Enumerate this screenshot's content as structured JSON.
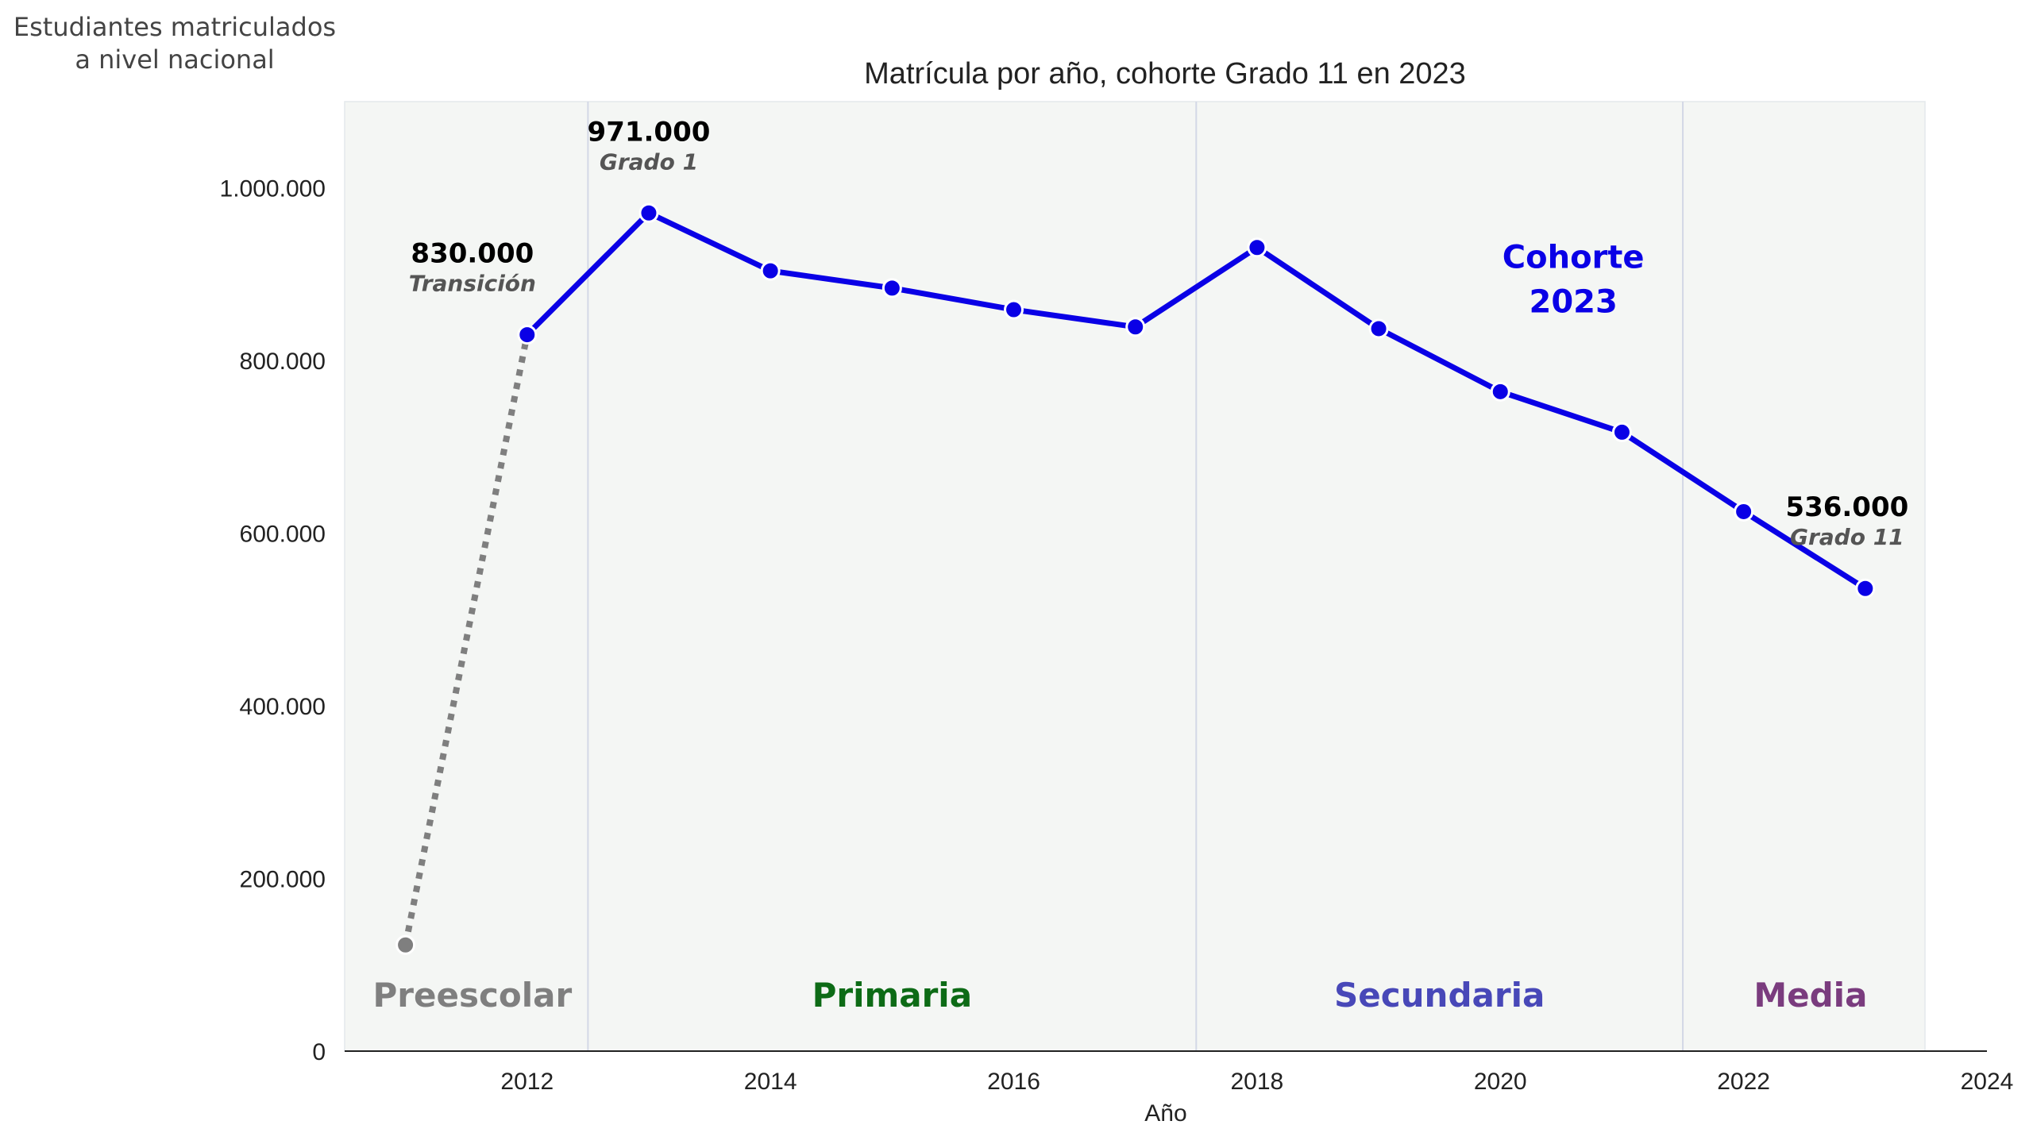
{
  "chart_data": {
    "type": "line",
    "title": "Matrícula por año, cohorte Grado 11 en 2023",
    "ylabel_lines": [
      "Estudiantes matriculados",
      "a nivel nacional"
    ],
    "xlabel": "Año",
    "xlim": [
      2010.5,
      2024
    ],
    "ylim": [
      0,
      1100000
    ],
    "x_ticks": [
      2012,
      2014,
      2016,
      2018,
      2020,
      2022,
      2024
    ],
    "y_ticks": [
      {
        "value": 0,
        "label": "0"
      },
      {
        "value": 200000,
        "label": "200.000"
      },
      {
        "value": 400000,
        "label": "400.000"
      },
      {
        "value": 600000,
        "label": "600.000"
      },
      {
        "value": 800000,
        "label": "800.000"
      },
      {
        "value": 1000000,
        "label": "1.000.000"
      }
    ],
    "grid": false,
    "background_color": "#f4f6f4",
    "colors": {
      "cohort_line": "#0a00e6",
      "preschool": "#7f7f7f"
    },
    "preschool_segment": {
      "x": [
        2011,
        2012
      ],
      "y": [
        123000,
        830000
      ],
      "style": "dotted"
    },
    "series": [
      {
        "name": "Cohorte 2023",
        "x": [
          2012,
          2013,
          2014,
          2015,
          2016,
          2017,
          2018,
          2019,
          2020,
          2021,
          2022,
          2023
        ],
        "y": [
          830000,
          971000,
          904000,
          884000,
          859000,
          839000,
          931000,
          837000,
          764000,
          717000,
          625000,
          536000
        ]
      }
    ],
    "level_dividers": [
      2012.5,
      2017.5,
      2021.5
    ],
    "levels": [
      {
        "label": "Preescolar",
        "color": "#7f7f7f",
        "x": 2011.55
      },
      {
        "label": "Primaria",
        "color": "#0d6b16",
        "x": 2015.0
      },
      {
        "label": "Secundaria",
        "color": "#4848b8",
        "x": 2019.5
      },
      {
        "label": "Media",
        "color": "#7a3c7e",
        "x": 2022.55
      }
    ],
    "annotations": [
      {
        "value": "830.000",
        "sub": "Transición",
        "x": 2011.55,
        "y_value": 830000
      },
      {
        "value": "971.000",
        "sub": "Grado 1",
        "x": 2013.0,
        "y_value": 971000
      },
      {
        "value": "536.000",
        "sub": "Grado 11",
        "x": 2022.85,
        "y_value": 536000
      }
    ],
    "cohort_label": {
      "lines": [
        "Cohorte",
        "2023"
      ],
      "x": 2020.6,
      "y_value": 920000
    }
  }
}
